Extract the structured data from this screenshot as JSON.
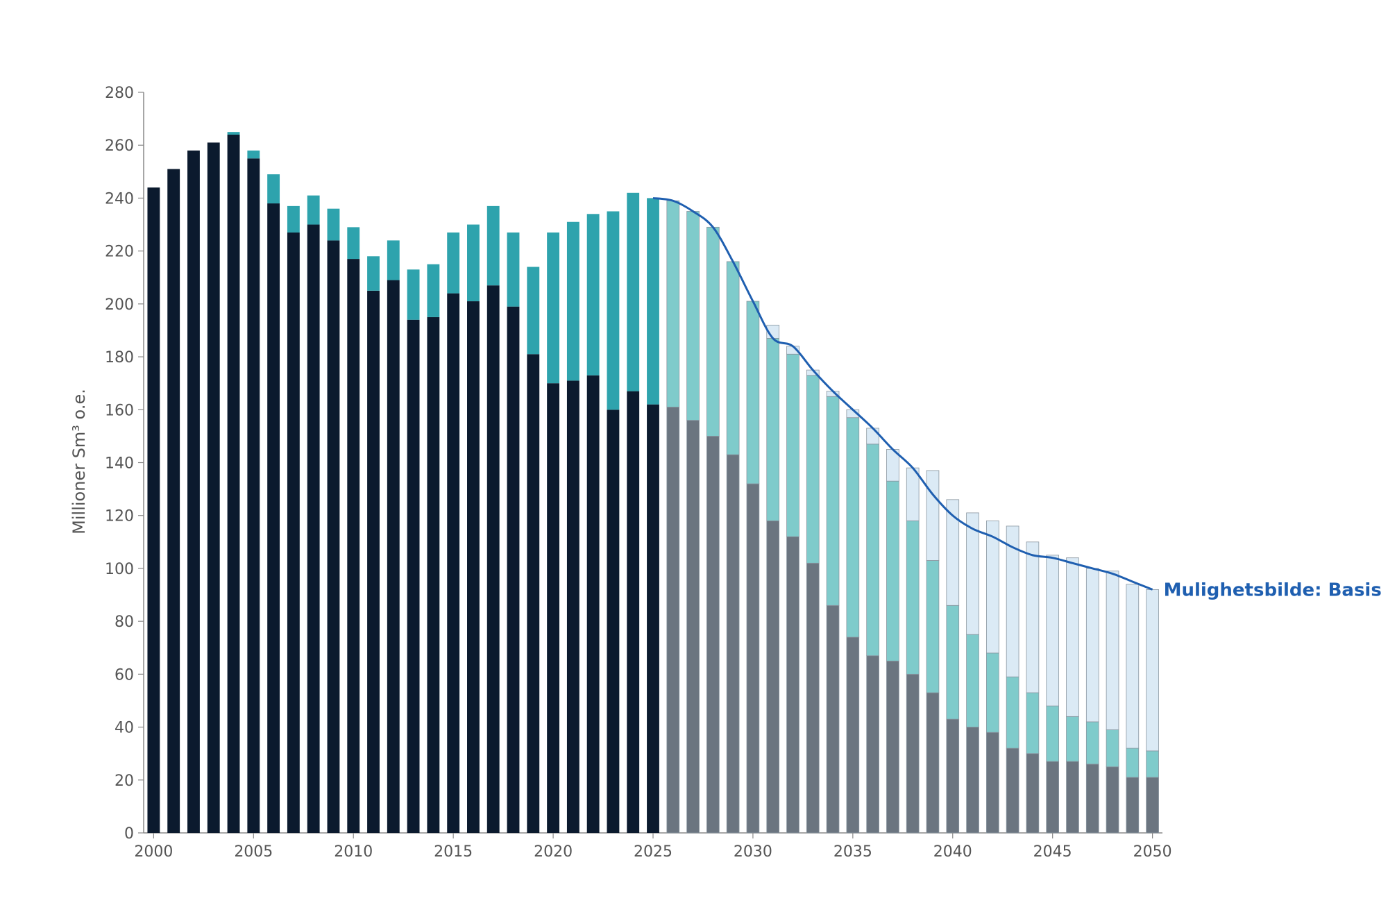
{
  "chart_data": {
    "type": "bar",
    "stacked": true,
    "ylabel": "Millioner Sm³ o.e.",
    "ylim": [
      0,
      280
    ],
    "yticks": [
      0,
      20,
      40,
      60,
      80,
      100,
      120,
      140,
      160,
      180,
      200,
      220,
      240,
      260,
      280
    ],
    "xticks": [
      2000,
      2005,
      2010,
      2015,
      2020,
      2025,
      2030,
      2035,
      2040,
      2045,
      2050
    ],
    "years": [
      2000,
      2001,
      2002,
      2003,
      2004,
      2005,
      2006,
      2007,
      2008,
      2009,
      2010,
      2011,
      2012,
      2013,
      2014,
      2015,
      2016,
      2017,
      2018,
      2019,
      2020,
      2021,
      2022,
      2023,
      2024,
      2025,
      2026,
      2027,
      2028,
      2029,
      2030,
      2031,
      2032,
      2033,
      2034,
      2035,
      2036,
      2037,
      2038,
      2039,
      2040,
      2041,
      2042,
      2043,
      2044,
      2045,
      2046,
      2047,
      2048,
      2049,
      2050
    ],
    "series": [
      {
        "values": [
          244,
          251,
          258,
          261,
          264,
          255,
          238,
          227,
          230,
          224,
          217,
          205,
          209,
          194,
          195,
          204,
          201,
          207,
          199,
          181,
          170,
          171,
          173,
          160,
          167,
          162,
          null,
          null,
          null,
          null,
          null,
          null,
          null,
          null,
          null,
          null,
          null,
          null,
          null,
          null,
          null,
          null,
          null,
          null,
          null,
          null,
          null,
          null,
          null,
          null,
          null
        ],
        "color": "#0b1a2e"
      },
      {
        "values": [
          0,
          0,
          0,
          0,
          1,
          3,
          11,
          10,
          11,
          12,
          12,
          13,
          15,
          19,
          20,
          23,
          29,
          30,
          28,
          33,
          57,
          60,
          61,
          75,
          75,
          78,
          null,
          null,
          null,
          null,
          null,
          null,
          null,
          null,
          null,
          null,
          null,
          null,
          null,
          null,
          null,
          null,
          null,
          null,
          null,
          null,
          null,
          null,
          null,
          null,
          null
        ],
        "color": "#2ea3ad"
      },
      {
        "values": [
          null,
          null,
          null,
          null,
          null,
          null,
          null,
          null,
          null,
          null,
          null,
          null,
          null,
          null,
          null,
          null,
          null,
          null,
          null,
          null,
          null,
          null,
          null,
          null,
          null,
          null,
          161,
          156,
          150,
          143,
          132,
          118,
          112,
          102,
          86,
          74,
          67,
          65,
          60,
          53,
          43,
          40,
          38,
          32,
          30,
          27,
          27,
          26,
          25,
          21,
          21
        ],
        "color": "#6b7580"
      },
      {
        "values": [
          null,
          null,
          null,
          null,
          null,
          null,
          null,
          null,
          null,
          null,
          null,
          null,
          null,
          null,
          null,
          null,
          null,
          null,
          null,
          null,
          null,
          null,
          null,
          null,
          null,
          null,
          78,
          79,
          79,
          73,
          69,
          69,
          69,
          71,
          79,
          83,
          80,
          68,
          58,
          50,
          43,
          35,
          30,
          27,
          23,
          21,
          17,
          16,
          14,
          11,
          10
        ],
        "color": "#7fcbcb"
      },
      {
        "values": [
          null,
          null,
          null,
          null,
          null,
          null,
          null,
          null,
          null,
          null,
          null,
          null,
          null,
          null,
          null,
          null,
          null,
          null,
          null,
          null,
          null,
          null,
          null,
          null,
          null,
          null,
          0,
          0,
          0,
          0,
          0,
          5,
          3,
          2,
          2,
          3,
          6,
          12,
          20,
          34,
          40,
          46,
          50,
          57,
          57,
          57,
          60,
          58,
          60,
          62,
          61
        ],
        "color": "#dbeaf5"
      }
    ],
    "line": {
      "name": "Mulighetsbilde: Basis",
      "color": "#1f5fb0",
      "x": [
        2025,
        2026,
        2027,
        2028,
        2029,
        2030,
        2031,
        2032,
        2033,
        2034,
        2035,
        2036,
        2037,
        2038,
        2039,
        2040,
        2041,
        2042,
        2043,
        2044,
        2045,
        2046,
        2047,
        2048,
        2049,
        2050
      ],
      "y": [
        240,
        239,
        235,
        229,
        216,
        201,
        187,
        184,
        175,
        167,
        160,
        153,
        145,
        138,
        128,
        120,
        115,
        112,
        108,
        105,
        104,
        102,
        100,
        98,
        95,
        92
      ]
    }
  }
}
